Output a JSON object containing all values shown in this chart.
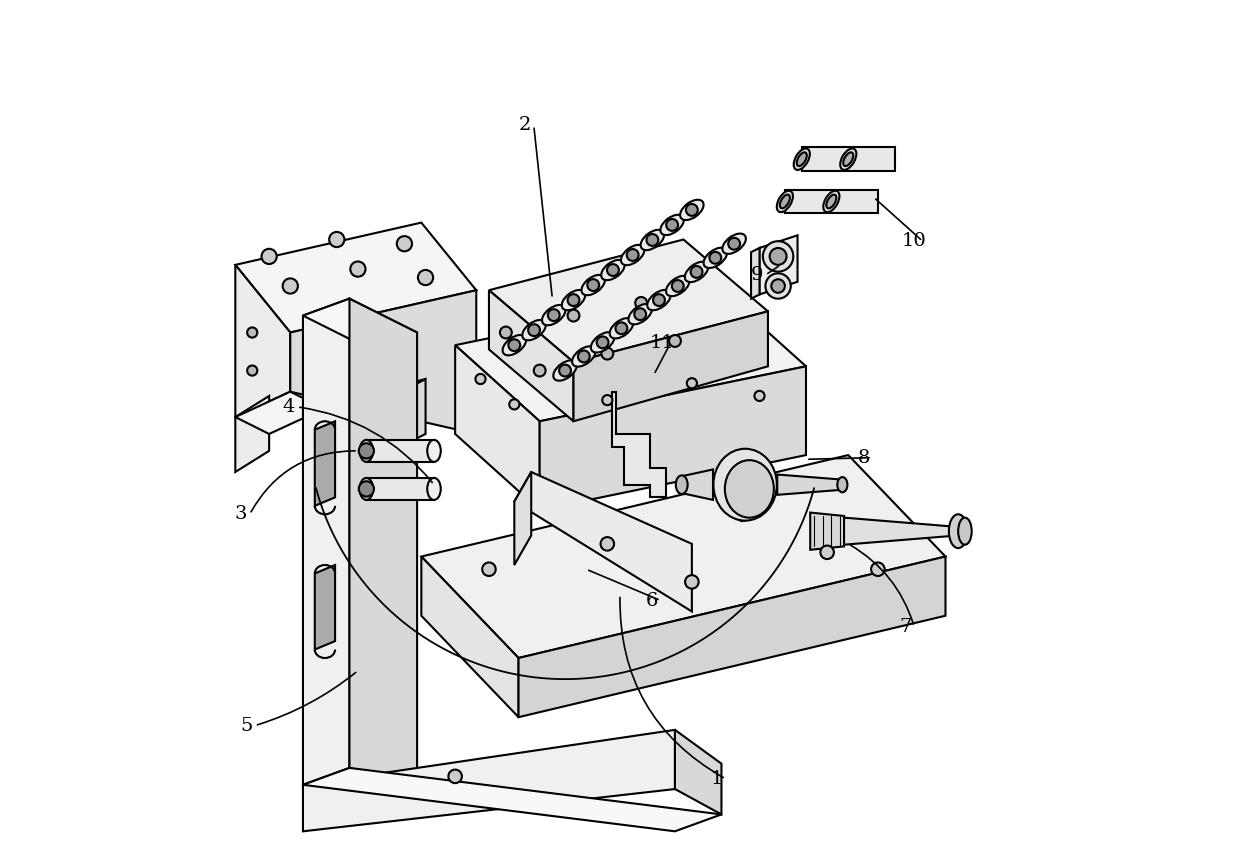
{
  "bg_color": "#ffffff",
  "line_color": "#000000",
  "line_width": 1.5,
  "fig_width": 12.4,
  "fig_height": 8.51,
  "leader_lines": {
    "1": {
      "from": [
        0.5,
        0.3
      ],
      "to": [
        0.615,
        0.082
      ],
      "rad": -0.3
    },
    "2": {
      "from": [
        0.42,
        0.65
      ],
      "to": [
        0.388,
        0.855
      ],
      "rad": 0.0
    },
    "3": {
      "from": [
        0.19,
        0.47
      ],
      "to": [
        0.052,
        0.395
      ],
      "rad": -0.3
    },
    "4": {
      "from": [
        0.28,
        0.43
      ],
      "to": [
        0.108,
        0.522
      ],
      "rad": -0.2
    },
    "5": {
      "from": [
        0.19,
        0.21
      ],
      "to": [
        0.058,
        0.145
      ],
      "rad": 0.1
    },
    "6": {
      "from": [
        0.46,
        0.33
      ],
      "to": [
        0.538,
        0.293
      ],
      "rad": 0.0
    },
    "7": {
      "from": [
        0.77,
        0.36
      ],
      "to": [
        0.838,
        0.262
      ],
      "rad": 0.2
    },
    "8": {
      "from": [
        0.72,
        0.46
      ],
      "to": [
        0.788,
        0.462
      ],
      "rad": 0.0
    },
    "9": {
      "from": [
        0.69,
        0.69
      ],
      "to": [
        0.662,
        0.678
      ],
      "rad": 0.0
    },
    "10": {
      "from": [
        0.8,
        0.77
      ],
      "to": [
        0.848,
        0.718
      ],
      "rad": 0.0
    },
    "11": {
      "from": [
        0.54,
        0.56
      ],
      "to": [
        0.55,
        0.598
      ],
      "rad": 0.0
    }
  }
}
